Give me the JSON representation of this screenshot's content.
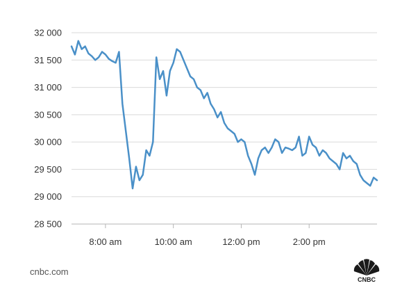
{
  "chart_data": {
    "type": "line",
    "title": "",
    "xlabel": "",
    "ylabel": "",
    "ylim": [
      28500,
      32000
    ],
    "grid": true,
    "y_ticks": [
      28500,
      29000,
      29500,
      30000,
      30500,
      31000,
      31500,
      32000
    ],
    "y_tick_labels": [
      "28 500",
      "29 000",
      "29 500",
      "30 000",
      "30 500",
      "31 000",
      "31 500",
      "32 000"
    ],
    "x_ticks": [
      8,
      10,
      12,
      14
    ],
    "x_tick_labels": [
      "8:00 am",
      "10:00 am",
      "12:00 pm",
      "2:00 pm"
    ],
    "xlim": [
      7,
      16
    ],
    "series": [
      {
        "color": "#4a90c8",
        "x": [
          7.0,
          7.1,
          7.2,
          7.3,
          7.4,
          7.5,
          7.6,
          7.7,
          7.8,
          7.9,
          8.0,
          8.1,
          8.2,
          8.3,
          8.4,
          8.5,
          8.6,
          8.7,
          8.8,
          8.9,
          9.0,
          9.1,
          9.2,
          9.3,
          9.4,
          9.5,
          9.6,
          9.7,
          9.8,
          9.9,
          10.0,
          10.1,
          10.2,
          10.3,
          10.4,
          10.5,
          10.6,
          10.7,
          10.8,
          10.9,
          11.0,
          11.1,
          11.2,
          11.3,
          11.4,
          11.5,
          11.6,
          11.7,
          11.8,
          11.9,
          12.0,
          12.1,
          12.2,
          12.3,
          12.4,
          12.5,
          12.6,
          12.7,
          12.8,
          12.9,
          13.0,
          13.1,
          13.2,
          13.3,
          13.4,
          13.5,
          13.6,
          13.7,
          13.8,
          13.9,
          14.0,
          14.1,
          14.2,
          14.3,
          14.4,
          14.5,
          14.6,
          14.7,
          14.8,
          14.9,
          15.0,
          15.1,
          15.2,
          15.3,
          15.4,
          15.5,
          15.6,
          15.7,
          15.8,
          15.9,
          16.0
        ],
        "values": [
          31750,
          31600,
          31850,
          31700,
          31750,
          31620,
          31570,
          31500,
          31550,
          31650,
          31600,
          31520,
          31480,
          31450,
          31650,
          30700,
          30200,
          29700,
          29150,
          29550,
          29300,
          29400,
          29850,
          29750,
          30000,
          31550,
          31150,
          31300,
          30850,
          31300,
          31450,
          31700,
          31650,
          31500,
          31350,
          31200,
          31150,
          31000,
          30950,
          30800,
          30900,
          30700,
          30600,
          30450,
          30550,
          30350,
          30250,
          30200,
          30150,
          30000,
          30050,
          30000,
          29750,
          29600,
          29400,
          29700,
          29850,
          29900,
          29800,
          29900,
          30050,
          30000,
          29800,
          29900,
          29880,
          29850,
          29900,
          30100,
          29750,
          29800,
          30100,
          29950,
          29900,
          29750,
          29850,
          29800,
          29700,
          29650,
          29600,
          29500,
          29800,
          29700,
          29750,
          29650,
          29600,
          29400,
          29300,
          29250,
          29200,
          29350,
          29300
        ]
      }
    ]
  },
  "footer": {
    "source": "cnbc.com",
    "brand": "CNBC"
  }
}
